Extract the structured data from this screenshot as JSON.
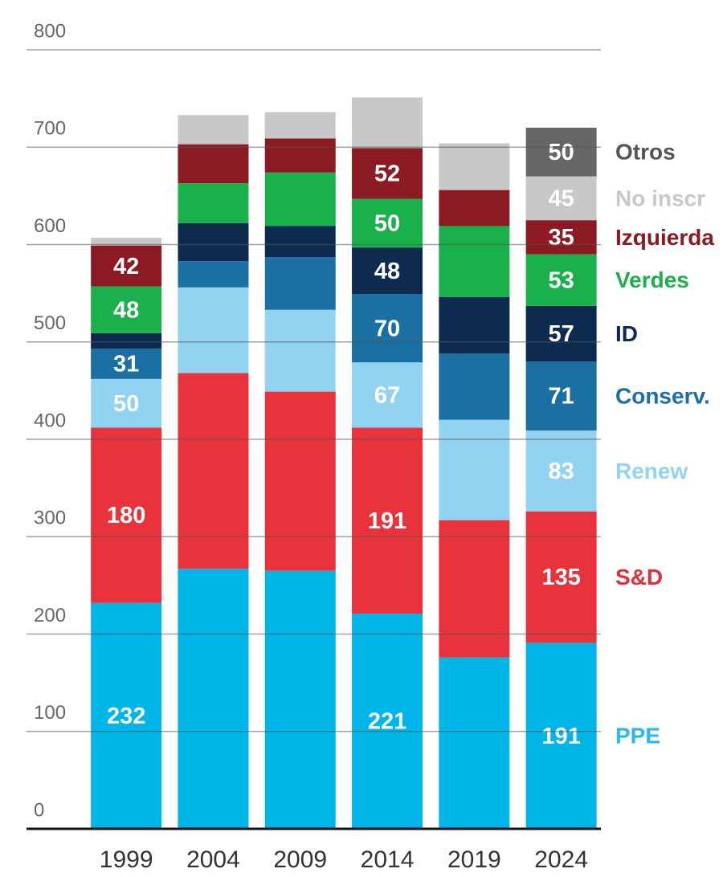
{
  "chart_data": {
    "type": "stacked-bar",
    "categories": [
      "1999",
      "2004",
      "2009",
      "2014",
      "2019",
      "2024"
    ],
    "ylim": [
      0,
      800
    ],
    "yticks": [
      0,
      100,
      200,
      300,
      400,
      500,
      600,
      700,
      800
    ],
    "grid": true,
    "series": [
      {
        "name": "PPE",
        "color": "#00b5e8",
        "label_color": "#2ab8ec",
        "values": [
          232,
          267,
          265,
          221,
          176,
          191
        ],
        "value_labels": [
          "232",
          null,
          null,
          "221",
          null,
          "191"
        ]
      },
      {
        "name": "S&D",
        "color": "#e8323c",
        "label_color": "#e0313a",
        "values": [
          180,
          201,
          184,
          191,
          141,
          135
        ],
        "value_labels": [
          "180",
          null,
          null,
          "191",
          null,
          "135"
        ]
      },
      {
        "name": "Renew",
        "color": "#92d3f2",
        "label_color": "#92d3f2",
        "values": [
          50,
          88,
          84,
          67,
          103,
          83
        ],
        "value_labels": [
          "50",
          null,
          null,
          "67",
          null,
          "83"
        ]
      },
      {
        "name": "Conserv.",
        "color": "#1a6fa3",
        "label_color": "#1a6fa3",
        "values": [
          31,
          27,
          54,
          70,
          68,
          71
        ],
        "value_labels": [
          "31",
          null,
          null,
          "70",
          null,
          "71"
        ]
      },
      {
        "name": "ID",
        "color": "#0d2a4f",
        "label_color": "#0d2a4f",
        "values": [
          16,
          39,
          32,
          48,
          58,
          57
        ],
        "value_labels": [
          null,
          null,
          null,
          "48",
          null,
          "57"
        ]
      },
      {
        "name": "Verdes",
        "color": "#1ab04b",
        "label_color": "#1ab04b",
        "values": [
          48,
          41,
          55,
          50,
          73,
          53
        ],
        "value_labels": [
          "48",
          null,
          null,
          "50",
          null,
          "53"
        ]
      },
      {
        "name": "Izquierda",
        "color": "#8b1a22",
        "label_color": "#8b1a22",
        "values": [
          42,
          40,
          35,
          52,
          37,
          35
        ],
        "value_labels": [
          "42",
          null,
          null,
          "52",
          null,
          "35"
        ]
      },
      {
        "name": "No inscr",
        "color": "#c8c8c8",
        "label_color": "#c8c8c8",
        "values": [
          8,
          30,
          27,
          52,
          48,
          45
        ],
        "value_labels": [
          null,
          null,
          null,
          null,
          null,
          "45"
        ]
      },
      {
        "name": "Otros",
        "color": "#666666",
        "label_color": "#555555",
        "values": [
          0,
          0,
          0,
          0,
          0,
          50
        ],
        "value_labels": [
          null,
          null,
          null,
          null,
          null,
          "50"
        ]
      }
    ]
  }
}
